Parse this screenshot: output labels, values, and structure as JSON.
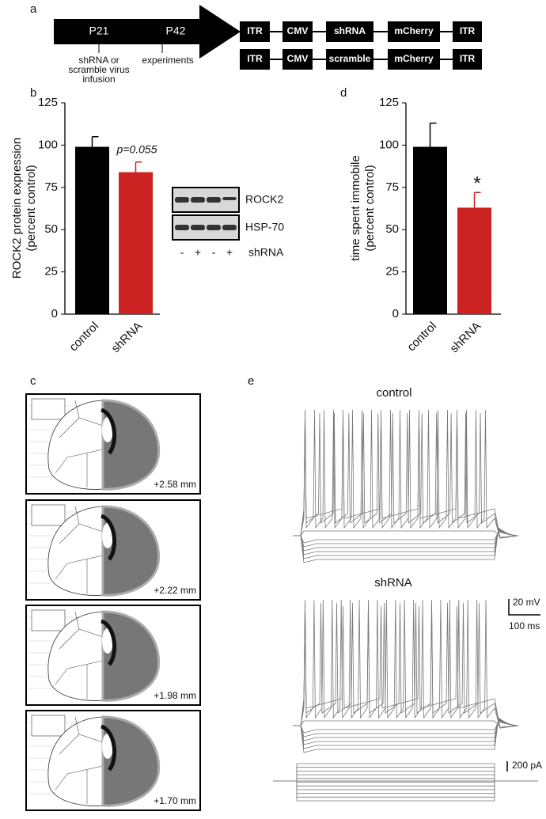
{
  "panel_labels": [
    "a",
    "b",
    "c",
    "d",
    "e"
  ],
  "timeline": {
    "ages": [
      "P21",
      "P42"
    ],
    "events": [
      [
        "shRNA or",
        "scramble virus",
        "infusion"
      ],
      [
        "experiments"
      ]
    ]
  },
  "constructs": [
    [
      "ITR",
      "CMV",
      "shRNA",
      "mCherry",
      "ITR"
    ],
    [
      "ITR",
      "CMV",
      "scramble",
      "mCherry",
      "ITR"
    ]
  ],
  "chart_data": [
    {
      "type": "bar",
      "ylabel": [
        "ROCK2 protein expression",
        "(percent control)"
      ],
      "categories": [
        "control",
        "shRNA"
      ],
      "values": [
        99,
        84
      ],
      "errors": [
        6,
        6
      ],
      "colors": [
        "#000000",
        "#cc2222"
      ],
      "annotation": "p=0.055",
      "ylim": [
        0,
        125
      ],
      "yticks": [
        0,
        25,
        50,
        75,
        100,
        125
      ]
    },
    {
      "type": "bar",
      "ylabel": [
        "time spent immobile",
        "(percent control)"
      ],
      "categories": [
        "control",
        "shRNA"
      ],
      "values": [
        99,
        63
      ],
      "errors": [
        14,
        9
      ],
      "colors": [
        "#000000",
        "#cc2222"
      ],
      "annotation": "*",
      "ylim": [
        0,
        125
      ],
      "yticks": [
        0,
        25,
        50,
        75,
        100,
        125
      ]
    }
  ],
  "blot": {
    "bands": [
      "ROCK2",
      "HSP-70"
    ],
    "lanes": [
      "-",
      "+",
      "-",
      "+"
    ],
    "lane_label": "shRNA"
  },
  "sections": [
    "+2.58 mm",
    "+2.22 mm",
    "+1.98 mm",
    "+1.70 mm"
  ],
  "recordings": {
    "traces": [
      "control",
      "shRNA"
    ],
    "scale_voltage": "20 mV",
    "scale_time": "100 ms",
    "scale_current": "200 pA"
  }
}
